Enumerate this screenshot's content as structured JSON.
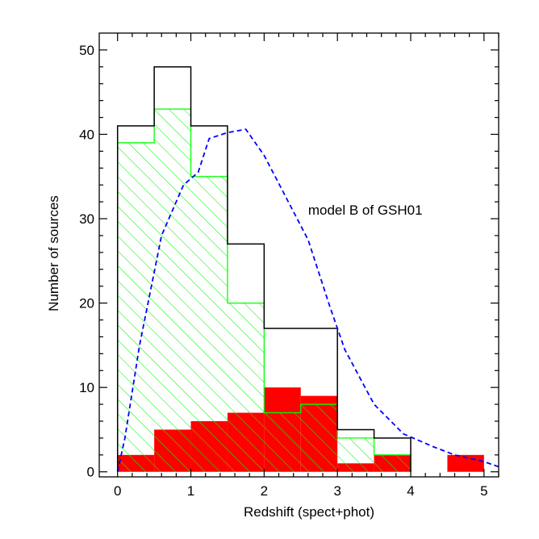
{
  "chart_data": {
    "type": "bar",
    "xlabel": "Redshift (spect+phot)",
    "ylabel": "Number of sources",
    "xlim": [
      -0.25,
      5.2
    ],
    "ylim": [
      -0.6,
      52
    ],
    "xticks": [
      0,
      1,
      2,
      3,
      4,
      5
    ],
    "yticks": [
      0,
      10,
      20,
      30,
      40,
      50
    ],
    "bin_edges": [
      0,
      0.5,
      1,
      1.5,
      2,
      2.5,
      3,
      3.5,
      4,
      4.5,
      5
    ],
    "series": [
      {
        "style": "outline",
        "color": "#000000",
        "values": [
          41,
          48,
          41,
          27,
          17,
          17,
          5,
          4,
          0,
          0
        ]
      },
      {
        "style": "hatched",
        "color": "#00ff00",
        "values": [
          39,
          43,
          35,
          20,
          7,
          8,
          4,
          2,
          0,
          0
        ]
      },
      {
        "style": "filled",
        "color": "#ff0000",
        "values": [
          2,
          5,
          6,
          7,
          10,
          9,
          1,
          2,
          0,
          2
        ]
      },
      {
        "style": "dashed-line",
        "color": "#0000ff",
        "x": [
          0.0,
          0.1,
          0.3,
          0.6,
          0.9,
          1.1,
          1.25,
          1.5,
          1.75,
          2.0,
          2.3,
          2.6,
          2.9,
          3.1,
          3.5,
          3.9,
          4.3,
          4.6,
          5.0,
          5.2
        ],
        "y": [
          0.0,
          4,
          15,
          28,
          34,
          35.5,
          39.5,
          40.2,
          40.6,
          37.5,
          32.5,
          27.5,
          19.5,
          14.5,
          8.0,
          4.5,
          3.0,
          2.0,
          1.2,
          0.6
        ]
      }
    ],
    "annotations": [
      {
        "text": "model B of GSH01",
        "x": 2.6,
        "y": 30.5
      }
    ],
    "grid": false
  }
}
